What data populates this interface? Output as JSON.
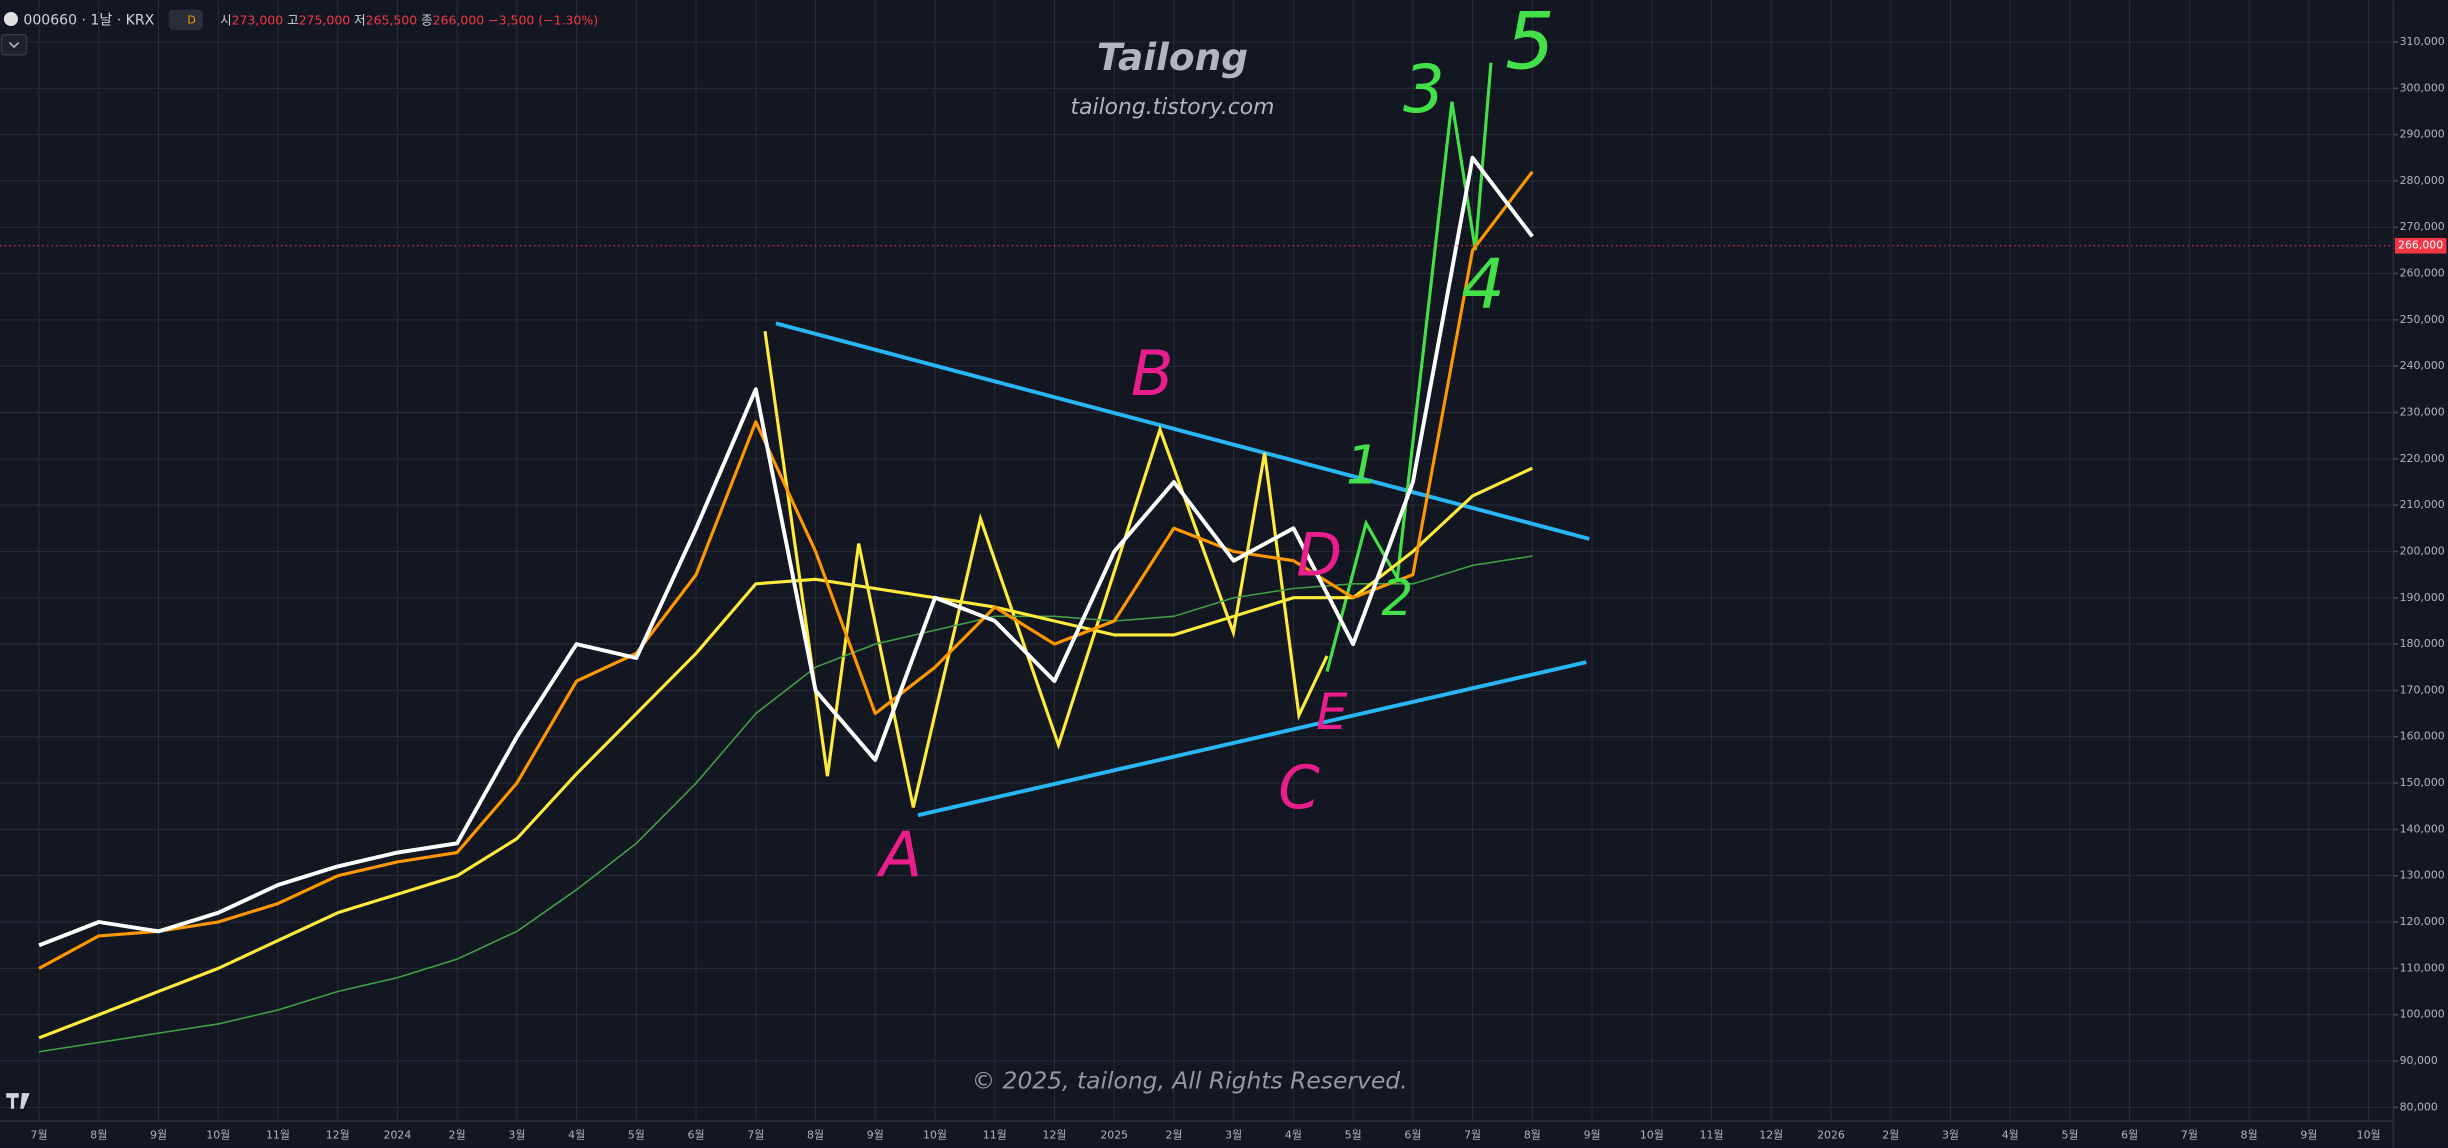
{
  "header": {
    "symbol": "000660 · 1날 · KRX",
    "interval": "D",
    "open_label": "시",
    "open": "273,000",
    "high_label": "고",
    "high": "275,000",
    "low_label": "저",
    "low": "265,500",
    "close_label": "종",
    "close": "266,000",
    "change": "−3,500 (−1.30%)"
  },
  "watermark": {
    "title": "Tailong",
    "subtitle": "tailong.tistory.com",
    "footer": "© 2025, tailong, All Rights Reserved."
  },
  "chart_data": {
    "type": "line",
    "categories": [
      "7월",
      "8월",
      "9월",
      "10월",
      "11월",
      "12월",
      "2024",
      "2월",
      "3월",
      "4월",
      "5월",
      "6월",
      "7월",
      "8월",
      "9월",
      "10월",
      "11월",
      "12월",
      "2025",
      "2월",
      "3월",
      "4월",
      "5월",
      "6월",
      "7월",
      "8월",
      "9월",
      "10월",
      "11월",
      "12월",
      "2026",
      "2월",
      "3월",
      "4월",
      "5월",
      "6월",
      "7월",
      "8월",
      "9월",
      "10월"
    ],
    "series": [
      {
        "color": "#43a047",
        "values": [
          92000,
          94000,
          96000,
          98000,
          101000,
          105000,
          108000,
          112000,
          118000,
          127000,
          137000,
          150000,
          165000,
          175000,
          180000,
          183000,
          186000,
          186000,
          185000,
          186000,
          190000,
          192000,
          193000,
          193000,
          197000,
          199000,
          null,
          null,
          null,
          null,
          null,
          null,
          null,
          null,
          null,
          null,
          null,
          null,
          null,
          null
        ]
      },
      {
        "color": "#ffeb3b",
        "values": [
          95000,
          100000,
          105000,
          110000,
          116000,
          122000,
          126000,
          130000,
          138000,
          152000,
          165000,
          178000,
          193000,
          194000,
          192000,
          190000,
          188000,
          185000,
          182000,
          182000,
          186000,
          190000,
          190000,
          200000,
          212000,
          218000,
          null,
          null,
          null,
          null,
          null,
          null,
          null,
          null,
          null,
          null,
          null,
          null,
          null,
          null
        ]
      },
      {
        "color": "#ff9800",
        "values": [
          110000,
          117000,
          118000,
          120000,
          124000,
          130000,
          133000,
          135000,
          150000,
          172000,
          178000,
          195000,
          228000,
          200000,
          165000,
          175000,
          188000,
          180000,
          185000,
          205000,
          200000,
          198000,
          190000,
          195000,
          265000,
          282000,
          null,
          null,
          null,
          null,
          null,
          null,
          null,
          null,
          null,
          null,
          null,
          null,
          null,
          null
        ]
      },
      {
        "color": "#ffffff",
        "values": [
          115000,
          120000,
          118000,
          122000,
          128000,
          132000,
          135000,
          137000,
          160000,
          180000,
          177000,
          205000,
          235000,
          170000,
          155000,
          190000,
          185000,
          172000,
          200000,
          215000,
          198000,
          205000,
          180000,
          215000,
          285000,
          268000,
          null,
          null,
          null,
          null,
          null,
          null,
          null,
          null,
          null,
          null,
          null,
          null,
          null,
          null
        ]
      }
    ],
    "ylim": [
      77000,
      319000
    ],
    "yticks": [
      {
        "value": 80000,
        "label": "80,000"
      },
      {
        "value": 90000,
        "label": "90,000"
      },
      {
        "value": 100000,
        "label": "100,000"
      },
      {
        "value": 110000,
        "label": "110,000"
      },
      {
        "value": 120000,
        "label": "120,000"
      },
      {
        "value": 130000,
        "label": "130,000"
      },
      {
        "value": 140000,
        "label": "140,000"
      },
      {
        "value": 150000,
        "label": "150,000"
      },
      {
        "value": 160000,
        "label": "160,000"
      },
      {
        "value": 170000,
        "label": "170,000"
      },
      {
        "value": 180000,
        "label": "180,000"
      },
      {
        "value": 190000,
        "label": "190,000"
      },
      {
        "value": 200000,
        "label": "200,000"
      },
      {
        "value": 210000,
        "label": "210,000"
      },
      {
        "value": 220000,
        "label": "220,000"
      },
      {
        "value": 230000,
        "label": "230,000"
      },
      {
        "value": 240000,
        "label": "240,000"
      },
      {
        "value": 250000,
        "label": "250,000"
      },
      {
        "value": 260000,
        "label": "260,000"
      },
      {
        "value": 270000,
        "label": "270,000"
      },
      {
        "value": 280000,
        "label": "280,000"
      },
      {
        "value": 290000,
        "label": "290,000"
      },
      {
        "value": 300000,
        "label": "300,000"
      },
      {
        "value": 310000,
        "label": "310,000"
      }
    ],
    "last_price": {
      "value": 266000,
      "label": "266,000",
      "color": "#f23645"
    },
    "grid": true,
    "annotations": [
      "A",
      "B",
      "C",
      "D",
      "E",
      "1",
      "2",
      "3",
      "4",
      "5"
    ]
  }
}
